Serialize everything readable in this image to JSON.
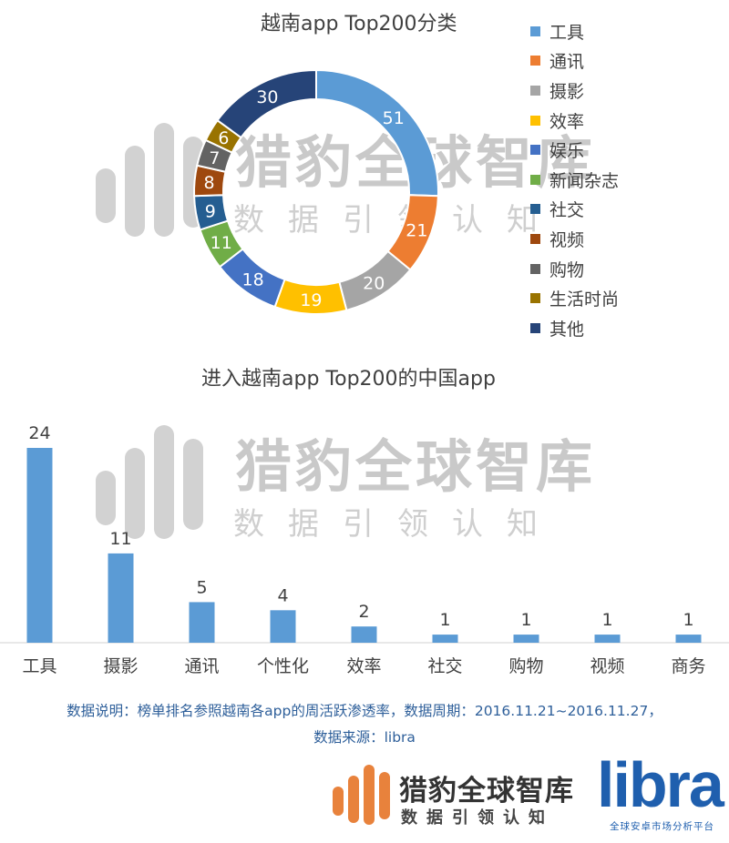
{
  "watermark": {
    "name": "猎豹全球智库",
    "slogan": "数据引领认知"
  },
  "chart_data": [
    {
      "type": "pie",
      "donut": true,
      "title": "越南app Top200分类",
      "legend_position": "right",
      "categories": [
        "工具",
        "通讯",
        "摄影",
        "效率",
        "娱乐",
        "新闻杂志",
        "社交",
        "视频",
        "购物",
        "生活时尚",
        "其他"
      ],
      "values": [
        51,
        21,
        20,
        19,
        18,
        11,
        9,
        8,
        7,
        6,
        30
      ],
      "colors": [
        "#5b9bd5",
        "#ed7d31",
        "#a5a5a5",
        "#ffc000",
        "#4472c4",
        "#70ad47",
        "#255e91",
        "#9e480e",
        "#636363",
        "#997300",
        "#264478"
      ]
    },
    {
      "type": "bar",
      "title": "进入越南app Top200的中国app",
      "categories": [
        "工具",
        "摄影",
        "通讯",
        "个性化",
        "效率",
        "社交",
        "购物",
        "视频",
        "商务"
      ],
      "values": [
        24,
        11,
        5,
        4,
        2,
        1,
        1,
        1,
        1
      ],
      "color": "#5b9bd5",
      "ylim": [
        0,
        24
      ],
      "xlabel": "",
      "ylabel": ""
    }
  ],
  "note": {
    "line1": "数据说明：榜单排名参照越南各app的周活跃渗透率，数据周期：2016.11.21~2016.11.27，",
    "line2": "数据来源：libra"
  },
  "footer": {
    "brand": "猎豹全球智库",
    "slogan": "数据引领认知",
    "libra": "libra",
    "libra_tagline": "全球安卓市场分析平台"
  }
}
